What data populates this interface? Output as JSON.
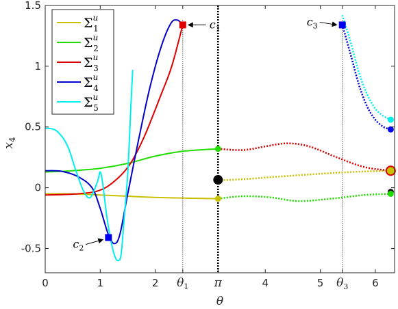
{
  "chart_data": {
    "type": "line",
    "title": "",
    "xlabel": "θ",
    "ylabel": "x",
    "ylabel_sub": "4",
    "xlim": [
      0,
      6.35
    ],
    "ylim": [
      -0.7,
      1.5
    ],
    "xticks": [
      {
        "value": 0,
        "label": "0"
      },
      {
        "value": 1,
        "label": "1"
      },
      {
        "value": 2,
        "label": "2"
      },
      {
        "value": 2.5,
        "label": "θ",
        "sub": "1"
      },
      {
        "value": 3.1416,
        "label": "π"
      },
      {
        "value": 4,
        "label": "4"
      },
      {
        "value": 5,
        "label": "5"
      },
      {
        "value": 5.4,
        "label": "θ",
        "sub": "3"
      },
      {
        "value": 6,
        "label": "6"
      }
    ],
    "yticks": [
      {
        "value": -0.5,
        "label": "-0.5"
      },
      {
        "value": 0,
        "label": "0"
      },
      {
        "value": 0.5,
        "label": "0.5"
      },
      {
        "value": 1,
        "label": "1"
      },
      {
        "value": 1.5,
        "label": "1.5"
      }
    ],
    "legend_position": "top-left",
    "series": [
      {
        "name": "Σ",
        "sub": "1",
        "sup": "u",
        "color": "#c8c000",
        "solid": [
          [
            0,
            -0.05
          ],
          [
            0.5,
            -0.05
          ],
          [
            1,
            -0.06
          ],
          [
            1.5,
            -0.07
          ],
          [
            2,
            -0.08
          ],
          [
            2.5,
            -0.085
          ],
          [
            3.1416,
            -0.09
          ]
        ],
        "dotted": [
          [
            3.1416,
            0.06
          ],
          [
            3.6,
            0.07
          ],
          [
            4.2,
            0.09
          ],
          [
            5.0,
            0.115
          ],
          [
            5.6,
            0.13
          ],
          [
            6.28,
            0.14
          ]
        ]
      },
      {
        "name": "Σ",
        "sub": "2",
        "sup": "u",
        "color": "#22dd00",
        "solid": [
          [
            0,
            0.13
          ],
          [
            0.5,
            0.14
          ],
          [
            1,
            0.16
          ],
          [
            1.5,
            0.2
          ],
          [
            2,
            0.26
          ],
          [
            2.5,
            0.3
          ],
          [
            3.1416,
            0.32
          ]
        ],
        "dotted": [
          [
            3.1416,
            -0.09
          ],
          [
            3.6,
            -0.07
          ],
          [
            4.1,
            -0.08
          ],
          [
            4.6,
            -0.11
          ],
          [
            5.2,
            -0.09
          ],
          [
            5.8,
            -0.06
          ],
          [
            6.28,
            -0.05
          ]
        ]
      },
      {
        "name": "Σ",
        "sub": "3",
        "sup": "u",
        "color": "#dd0000",
        "solid": [
          [
            0,
            -0.06
          ],
          [
            0.6,
            -0.05
          ],
          [
            1.0,
            -0.02
          ],
          [
            1.3,
            0.07
          ],
          [
            1.55,
            0.2
          ],
          [
            1.8,
            0.42
          ],
          [
            2.1,
            0.76
          ],
          [
            2.3,
            1.0
          ],
          [
            2.5,
            1.34
          ]
        ],
        "dotted": [
          [
            3.1416,
            0.32
          ],
          [
            3.6,
            0.31
          ],
          [
            4.0,
            0.34
          ],
          [
            4.4,
            0.365
          ],
          [
            4.8,
            0.34
          ],
          [
            5.3,
            0.25
          ],
          [
            5.8,
            0.17
          ],
          [
            6.28,
            0.14
          ]
        ]
      },
      {
        "name": "Σ",
        "sub": "4",
        "sup": "u",
        "color": "#0000cc",
        "solid": [
          [
            0,
            0.14
          ],
          [
            0.3,
            0.135
          ],
          [
            0.6,
            0.09
          ],
          [
            0.85,
            0.0
          ],
          [
            1.0,
            -0.17
          ],
          [
            1.15,
            -0.39
          ],
          [
            1.26,
            -0.46
          ],
          [
            1.36,
            -0.38
          ],
          [
            1.5,
            -0.05
          ],
          [
            1.7,
            0.4
          ],
          [
            1.9,
            0.82
          ],
          [
            2.1,
            1.15
          ],
          [
            2.28,
            1.35
          ],
          [
            2.4,
            1.38
          ],
          [
            2.5,
            1.34
          ]
        ],
        "dotted": [
          [
            5.4,
            1.34
          ],
          [
            5.55,
            1.1
          ],
          [
            5.7,
            0.85
          ],
          [
            5.85,
            0.67
          ],
          [
            6.0,
            0.56
          ],
          [
            6.15,
            0.5
          ],
          [
            6.28,
            0.48
          ]
        ]
      },
      {
        "name": "Σ",
        "sub": "5",
        "sup": "u",
        "color": "#00eeee",
        "solid": [
          [
            0,
            0.49
          ],
          [
            0.2,
            0.47
          ],
          [
            0.4,
            0.35
          ],
          [
            0.55,
            0.15
          ],
          [
            0.7,
            -0.03
          ],
          [
            0.82,
            -0.08
          ],
          [
            0.95,
            0.05
          ],
          [
            1.0,
            0.13
          ],
          [
            1.05,
            0.02
          ],
          [
            1.12,
            -0.24
          ],
          [
            1.2,
            -0.45
          ],
          [
            1.27,
            -0.57
          ],
          [
            1.33,
            -0.6
          ],
          [
            1.38,
            -0.55
          ],
          [
            1.43,
            -0.28
          ],
          [
            1.5,
            0.12
          ],
          [
            1.56,
            0.7
          ],
          [
            1.59,
            0.97
          ]
        ],
        "dotted": [
          [
            5.4,
            1.42
          ],
          [
            5.55,
            1.2
          ],
          [
            5.7,
            0.95
          ],
          [
            5.85,
            0.77
          ],
          [
            6.0,
            0.65
          ],
          [
            6.15,
            0.59
          ],
          [
            6.28,
            0.56
          ]
        ]
      }
    ],
    "markers": [
      {
        "label": "c",
        "sub": "1",
        "x": 2.5,
        "y": 1.34,
        "color": "#dd0000",
        "shape": "square"
      },
      {
        "label": "c",
        "sub": "2",
        "x": 1.15,
        "y": -0.41,
        "color": "#0000ee",
        "shape": "square"
      },
      {
        "label": "c",
        "sub": "3",
        "x": 5.4,
        "y": 1.34,
        "color": "#0000ee",
        "shape": "square"
      }
    ],
    "points": [
      {
        "x": 3.1416,
        "y": 0.32,
        "color": "#22dd00"
      },
      {
        "x": 3.1416,
        "y": -0.09,
        "color": "#c8c000"
      },
      {
        "x": 3.1416,
        "y": 0.065,
        "color": "#000000",
        "big": true
      },
      {
        "x": 6.28,
        "y": 0.56,
        "color": "#00eeee"
      },
      {
        "x": 6.28,
        "y": 0.48,
        "color": "#0000ee"
      },
      {
        "x": 6.28,
        "y": 0.14,
        "color": "#dd0000",
        "big": true
      },
      {
        "x": 6.28,
        "y": 0.14,
        "color": "#c8c000"
      },
      {
        "x": 6.28,
        "y": -0.035,
        "color": "#000000"
      },
      {
        "x": 6.28,
        "y": -0.05,
        "color": "#22dd00"
      }
    ],
    "vlines": [
      {
        "x": 2.5,
        "style": "fine-dotted"
      },
      {
        "x": 3.1416,
        "style": "heavy-dotted"
      },
      {
        "x": 5.4,
        "style": "fine-dotted"
      }
    ]
  }
}
